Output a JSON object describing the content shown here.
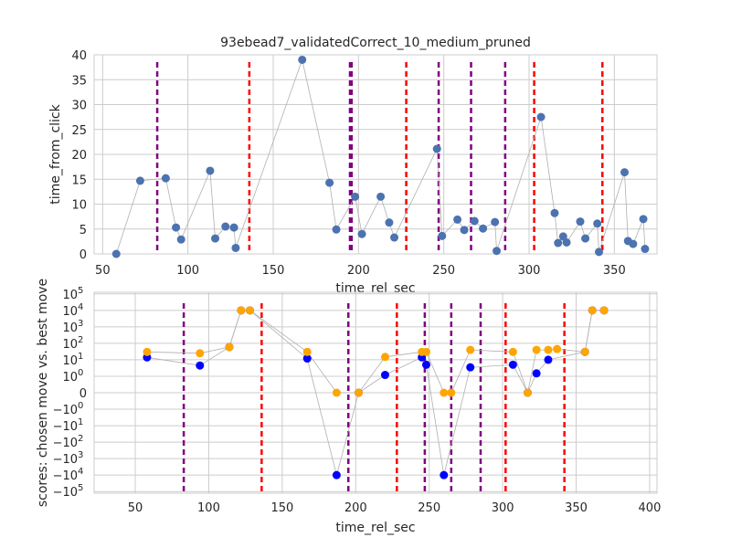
{
  "chart_data": [
    {
      "type": "scatter",
      "title": "93ebead7_validatedCorrect_10_medium_pruned",
      "xlabel": "time_rel_sec",
      "ylabel": "time_from_click",
      "xlim": [
        45,
        375
      ],
      "ylim": [
        0,
        40
      ],
      "xticks": [
        50,
        100,
        150,
        200,
        250,
        300,
        350
      ],
      "yticks": [
        0,
        5,
        10,
        15,
        20,
        25,
        30,
        35,
        40
      ],
      "grid": true,
      "point_color": "#4c72b0",
      "connector_color": "#b0b0b0",
      "series": [
        {
          "x": [
            58,
            72,
            87,
            93,
            96,
            113,
            116,
            122,
            127,
            128,
            167,
            183,
            187,
            198,
            202,
            213,
            218,
            221,
            246,
            249,
            258,
            262,
            268,
            273,
            280,
            281,
            307,
            315,
            317,
            320,
            322,
            330,
            333,
            340,
            341,
            356,
            358,
            361,
            367,
            368
          ],
          "y": [
            0,
            14.7,
            15.2,
            5.3,
            2.9,
            16.7,
            3.1,
            5.5,
            5.3,
            1.2,
            39,
            14.3,
            4.9,
            11.5,
            4.0,
            11.5,
            6.3,
            3.3,
            21.1,
            3.6,
            6.9,
            4.8,
            6.6,
            5.1,
            6.4,
            0.6,
            27.5,
            8.2,
            2.2,
            3.5,
            2.3,
            6.5,
            3.1,
            6.1,
            0.4,
            16.4,
            2.6,
            2.0,
            7.0,
            1.0
          ]
        }
      ],
      "vlines": [
        {
          "x": 82,
          "color": "#800080"
        },
        {
          "x": 136,
          "color": "#ff0000"
        },
        {
          "x": 195,
          "color": "#800080"
        },
        {
          "x": 196,
          "color": "#800080"
        },
        {
          "x": 228,
          "color": "#ff0000"
        },
        {
          "x": 247,
          "color": "#800080"
        },
        {
          "x": 266,
          "color": "#800080"
        },
        {
          "x": 286,
          "color": "#800080"
        },
        {
          "x": 303,
          "color": "#ff0000"
        },
        {
          "x": 343,
          "color": "#ff0000"
        }
      ]
    },
    {
      "type": "scatter",
      "title": "",
      "xlabel": "time_rel_sec",
      "ylabel": "scores: chosen move vs. best move",
      "xlim": [
        22,
        405
      ],
      "yscale": "symlog",
      "xticks": [
        50,
        100,
        150,
        200,
        250,
        300,
        350,
        400
      ],
      "yticks": [
        {
          "v": 100000,
          "base": "10",
          "exp": "5"
        },
        {
          "v": 10000,
          "base": "10",
          "exp": "4"
        },
        {
          "v": 1000,
          "base": "10",
          "exp": "3"
        },
        {
          "v": 100,
          "base": "10",
          "exp": "2"
        },
        {
          "v": 10,
          "base": "10",
          "exp": "1"
        },
        {
          "v": 1,
          "base": "10",
          "exp": "0"
        },
        {
          "v": 0,
          "base": "0",
          "exp": ""
        },
        {
          "v": -1,
          "base": "−10",
          "exp": "0"
        },
        {
          "v": -10,
          "base": "−10",
          "exp": "1"
        },
        {
          "v": -100,
          "base": "−10",
          "exp": "2"
        },
        {
          "v": -1000,
          "base": "−10",
          "exp": "3"
        },
        {
          "v": -10000,
          "base": "−10",
          "exp": "4"
        },
        {
          "v": -100000,
          "base": "−10",
          "exp": "5"
        }
      ],
      "grid": true,
      "connector_color": "#b0b0b0",
      "series": [
        {
          "color": "#0000ff",
          "points": [
            [
              58,
              14
            ],
            [
              94,
              4.5
            ],
            [
              114,
              60
            ],
            [
              122,
              10000
            ],
            [
              128,
              10000
            ],
            [
              167,
              12
            ],
            [
              187,
              -10000
            ],
            [
              202,
              0
            ],
            [
              220,
              1.2
            ],
            [
              245,
              14
            ],
            [
              248,
              5
            ],
            [
              260,
              -10000
            ],
            [
              278,
              3.5
            ],
            [
              307,
              5
            ],
            [
              317,
              0
            ],
            [
              323,
              1.5
            ],
            [
              331,
              10
            ],
            [
              356,
              30
            ],
            [
              361,
              10000
            ],
            [
              369,
              10000
            ]
          ]
        },
        {
          "color": "#ffa500",
          "points": [
            [
              58,
              30
            ],
            [
              94,
              25
            ],
            [
              114,
              60
            ],
            [
              122,
              10000
            ],
            [
              128,
              10000
            ],
            [
              167,
              30
            ],
            [
              187,
              0
            ],
            [
              202,
              0
            ],
            [
              220,
              15
            ],
            [
              245,
              30
            ],
            [
              248,
              30
            ],
            [
              260,
              0
            ],
            [
              265,
              0
            ],
            [
              278,
              40
            ],
            [
              307,
              30
            ],
            [
              317,
              0
            ],
            [
              323,
              40
            ],
            [
              331,
              40
            ],
            [
              337,
              45
            ],
            [
              356,
              30
            ],
            [
              361,
              10000
            ],
            [
              369,
              10000
            ]
          ]
        }
      ],
      "vlines": [
        {
          "x": 83,
          "color": "#800080"
        },
        {
          "x": 136,
          "color": "#ff0000"
        },
        {
          "x": 195,
          "color": "#800080"
        },
        {
          "x": 228,
          "color": "#ff0000"
        },
        {
          "x": 247,
          "color": "#800080"
        },
        {
          "x": 265,
          "color": "#800080"
        },
        {
          "x": 285,
          "color": "#800080"
        },
        {
          "x": 302,
          "color": "#ff0000"
        },
        {
          "x": 342,
          "color": "#ff0000"
        }
      ]
    }
  ]
}
